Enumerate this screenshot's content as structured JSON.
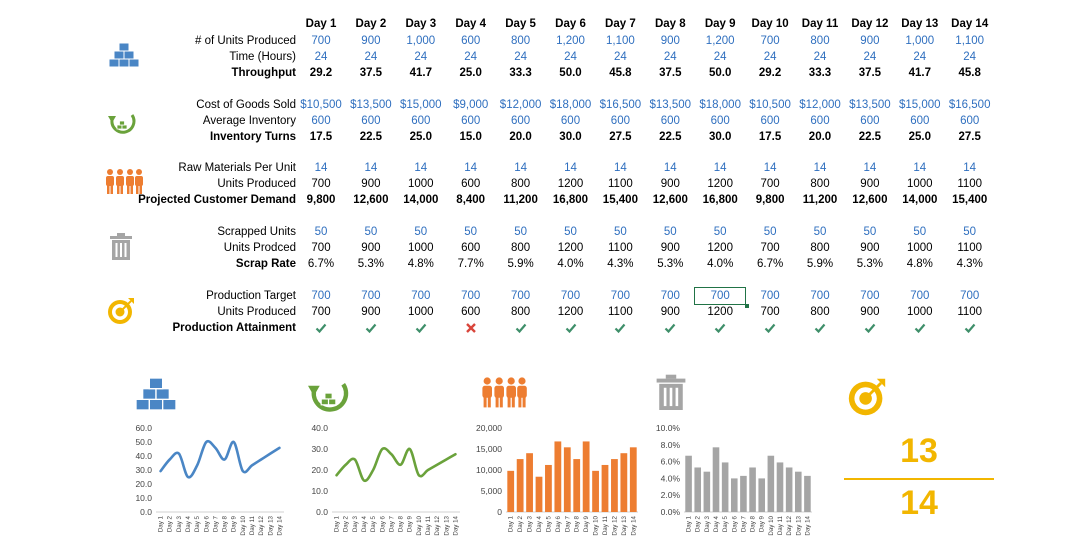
{
  "days": [
    "Day 1",
    "Day 2",
    "Day 3",
    "Day 4",
    "Day 5",
    "Day 6",
    "Day 7",
    "Day 8",
    "Day 9",
    "Day 10",
    "Day 11",
    "Day 12",
    "Day 13",
    "Day 14"
  ],
  "sections": [
    {
      "icon": "gold-bars-icon",
      "rows": [
        {
          "label": "# of Units Produced",
          "style": "blue",
          "values": [
            "700",
            "900",
            "1,000",
            "600",
            "800",
            "1,200",
            "1,100",
            "900",
            "1,200",
            "700",
            "800",
            "900",
            "1,000",
            "1,100"
          ]
        },
        {
          "label": "Time (Hours)",
          "style": "blue",
          "values": [
            "24",
            "24",
            "24",
            "24",
            "24",
            "24",
            "24",
            "24",
            "24",
            "24",
            "24",
            "24",
            "24",
            "24"
          ]
        },
        {
          "label": "Throughput",
          "style": "bold",
          "values": [
            "29.2",
            "37.5",
            "41.7",
            "25.0",
            "33.3",
            "50.0",
            "45.8",
            "37.5",
            "50.0",
            "29.2",
            "33.3",
            "37.5",
            "41.7",
            "45.8"
          ]
        }
      ]
    },
    {
      "icon": "inventory-turns-icon",
      "rows": [
        {
          "label": "Cost of Goods Sold",
          "style": "blue",
          "values": [
            "$10,500",
            "$13,500",
            "$15,000",
            "$9,000",
            "$12,000",
            "$18,000",
            "$16,500",
            "$13,500",
            "$18,000",
            "$10,500",
            "$12,000",
            "$13,500",
            "$15,000",
            "$16,500"
          ]
        },
        {
          "label": "Average Inventory",
          "style": "blue",
          "values": [
            "600",
            "600",
            "600",
            "600",
            "600",
            "600",
            "600",
            "600",
            "600",
            "600",
            "600",
            "600",
            "600",
            "600"
          ]
        },
        {
          "label": "Inventory Turns",
          "style": "bold",
          "values": [
            "17.5",
            "22.5",
            "25.0",
            "15.0",
            "20.0",
            "30.0",
            "27.5",
            "22.5",
            "30.0",
            "17.5",
            "20.0",
            "22.5",
            "25.0",
            "27.5"
          ]
        }
      ]
    },
    {
      "icon": "people-group-icon",
      "rows": [
        {
          "label": "Raw Materials Per Unit",
          "style": "blue",
          "values": [
            "14",
            "14",
            "14",
            "14",
            "14",
            "14",
            "14",
            "14",
            "14",
            "14",
            "14",
            "14",
            "14",
            "14"
          ]
        },
        {
          "label": "Units Produced",
          "style": "plain",
          "values": [
            "700",
            "900",
            "1000",
            "600",
            "800",
            "1200",
            "1100",
            "900",
            "1200",
            "700",
            "800",
            "900",
            "1000",
            "1100"
          ]
        },
        {
          "label": "Projected Customer Demand",
          "style": "bold",
          "values": [
            "9,800",
            "12,600",
            "14,000",
            "8,400",
            "11,200",
            "16,800",
            "15,400",
            "12,600",
            "16,800",
            "9,800",
            "11,200",
            "12,600",
            "14,000",
            "15,400"
          ]
        }
      ]
    },
    {
      "icon": "trash-can-icon",
      "rows": [
        {
          "label": "Scrapped Units",
          "style": "blue",
          "values": [
            "50",
            "50",
            "50",
            "50",
            "50",
            "50",
            "50",
            "50",
            "50",
            "50",
            "50",
            "50",
            "50",
            "50"
          ]
        },
        {
          "label": "Units Prodced",
          "style": "plain",
          "values": [
            "700",
            "900",
            "1000",
            "600",
            "800",
            "1200",
            "1100",
            "900",
            "1200",
            "700",
            "800",
            "900",
            "1000",
            "1100"
          ]
        },
        {
          "label": "Scrap Rate",
          "style": "bold-label",
          "values": [
            "6.7%",
            "5.3%",
            "4.8%",
            "7.7%",
            "5.9%",
            "4.0%",
            "4.3%",
            "5.3%",
            "4.0%",
            "6.7%",
            "5.9%",
            "5.3%",
            "4.8%",
            "4.3%"
          ]
        }
      ]
    },
    {
      "icon": "target-icon",
      "rows": [
        {
          "label": "Production Target",
          "style": "blue",
          "values": [
            "700",
            "700",
            "700",
            "700",
            "700",
            "700",
            "700",
            "700",
            "700",
            "700",
            "700",
            "700",
            "700",
            "700"
          ]
        },
        {
          "label": "Units Produced",
          "style": "plain",
          "values": [
            "700",
            "900",
            "1000",
            "600",
            "800",
            "1200",
            "1100",
            "900",
            "1200",
            "700",
            "800",
            "900",
            "1000",
            "1100"
          ]
        },
        {
          "label": "Production Attainment",
          "style": "marks",
          "values": [
            "check",
            "check",
            "check",
            "cross",
            "check",
            "check",
            "check",
            "check",
            "check",
            "check",
            "check",
            "check",
            "check",
            "check"
          ]
        }
      ]
    }
  ],
  "colors": {
    "blue": "#4a86c5",
    "green": "#6aa23b",
    "orange": "#ed7d31",
    "gray": "#a5a5a5",
    "gold": "#f2b600",
    "check": "#3f8f6a",
    "cross": "#d9453b"
  },
  "chart_data": [
    {
      "type": "line",
      "series": [
        {
          "values": [
            29.2,
            37.5,
            41.7,
            25.0,
            33.3,
            50.0,
            45.8,
            37.5,
            50.0,
            29.2,
            33.3,
            37.5,
            41.7,
            45.8
          ]
        }
      ],
      "ylim": [
        0,
        60
      ],
      "yticks": [
        "0.0",
        "10.0",
        "20.0",
        "30.0",
        "40.0",
        "50.0",
        "60.0"
      ],
      "color": "#4a86c5"
    },
    {
      "type": "line",
      "series": [
        {
          "values": [
            17.5,
            22.5,
            25.0,
            15.0,
            20.0,
            30.0,
            27.5,
            22.5,
            30.0,
            17.5,
            20.0,
            22.5,
            25.0,
            27.5
          ]
        }
      ],
      "ylim": [
        0,
        40
      ],
      "yticks": [
        "0.0",
        "10.0",
        "20.0",
        "30.0",
        "40.0"
      ],
      "color": "#6aa23b"
    },
    {
      "type": "bar",
      "series": [
        {
          "values": [
            9800,
            12600,
            14000,
            8400,
            11200,
            16800,
            15400,
            12600,
            16800,
            9800,
            11200,
            12600,
            14000,
            15400
          ]
        }
      ],
      "ylim": [
        0,
        20000
      ],
      "yticks": [
        "0",
        "5,000",
        "10,000",
        "15,000",
        "20,000"
      ],
      "color": "#ed7d31"
    },
    {
      "type": "bar",
      "series": [
        {
          "values": [
            6.7,
            5.3,
            4.8,
            7.7,
            5.9,
            4.0,
            4.3,
            5.3,
            4.0,
            6.7,
            5.9,
            5.3,
            4.8,
            4.3
          ]
        }
      ],
      "ylim": [
        0,
        10
      ],
      "yticks": [
        "0.0%",
        "2.0%",
        "4.0%",
        "6.0%",
        "8.0%",
        "10.0%"
      ],
      "color": "#a5a5a5"
    }
  ],
  "kpi": {
    "numerator": "13",
    "denominator": "14"
  }
}
